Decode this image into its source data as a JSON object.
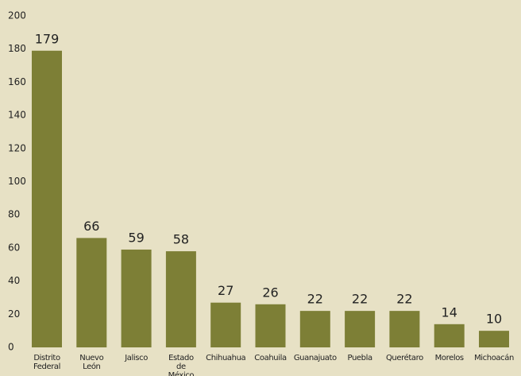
{
  "chart_data": {
    "type": "bar",
    "categories": [
      "Distrito Federal",
      "Nuevo León",
      "Jalisco",
      "Estado de México",
      "Chihuahua",
      "Coahuila",
      "Guanajuato",
      "Puebla",
      "Querétaro",
      "Morelos",
      "Michoacán"
    ],
    "values": [
      179,
      66,
      59,
      58,
      27,
      26,
      22,
      22,
      22,
      14,
      10
    ],
    "color": "#7d7f36",
    "ylim": [
      0,
      200
    ],
    "yticks": [
      0,
      20,
      40,
      60,
      80,
      100,
      120,
      140,
      160,
      180,
      200
    ],
    "grid": false
  }
}
